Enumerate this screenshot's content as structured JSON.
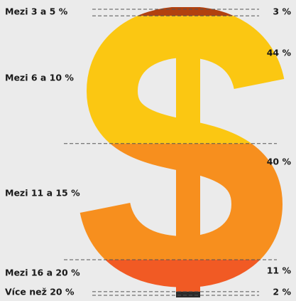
{
  "chart_data": {
    "type": "pictogram",
    "categories": [
      "Mezi 3 a 5 %",
      "Mezi 6 a 10 %",
      "Mezi 11 a 15 %",
      "Mezi 16 a 20 %",
      "Více než 20 %"
    ],
    "values": [
      3,
      44,
      40,
      11,
      2
    ],
    "value_labels": [
      "3 %",
      "44 %",
      "40 %",
      "11 %",
      "2 %"
    ],
    "colors": [
      "#b2410f",
      "#fbc712",
      "#f78f1e",
      "#f15a24",
      "#2b2b2b"
    ]
  }
}
